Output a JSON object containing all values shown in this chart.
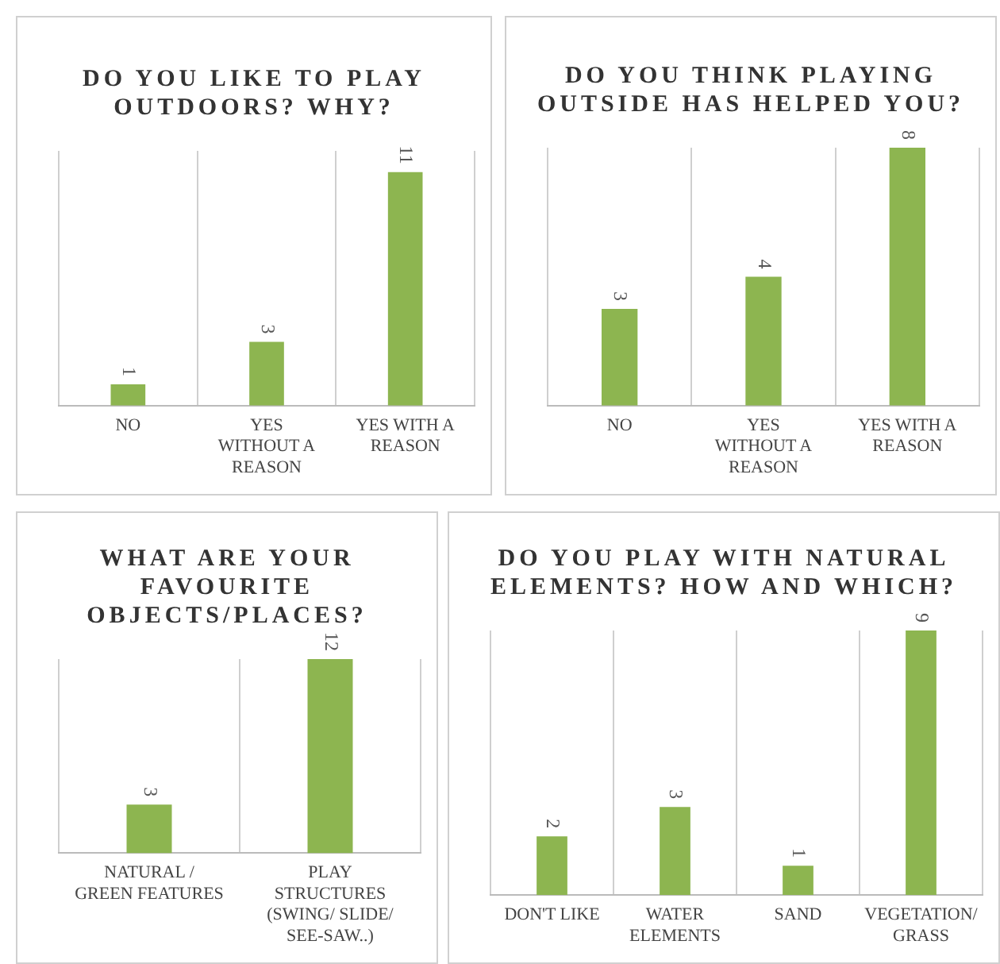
{
  "chart_data": [
    {
      "type": "bar",
      "title": "DO YOU LIKE TO PLAY OUTDOORS? WHY?",
      "categories": [
        "NO",
        "YES WITHOUT A REASON",
        "YES WITH A REASON"
      ],
      "values": [
        1,
        3,
        11
      ],
      "color": "#8db550",
      "data_labels": true,
      "grid": "x"
    },
    {
      "type": "bar",
      "title": "DO YOU THINK PLAYING OUTSIDE HAS HELPED YOU?",
      "categories": [
        "NO",
        "YES WITHOUT A REASON",
        "YES WITH A REASON"
      ],
      "values": [
        3,
        4,
        8
      ],
      "color": "#8db550",
      "data_labels": true,
      "grid": "x"
    },
    {
      "type": "bar",
      "title": "WHAT ARE YOUR FAVOURITE OBJECTS/PLACES?",
      "categories": [
        "NATURAL / GREEN FEATURES",
        "PLAY STRUCTURES (SWING/ SLIDE/ SEE-SAW..)"
      ],
      "values": [
        3,
        12
      ],
      "color": "#8db550",
      "data_labels": true,
      "grid": "x"
    },
    {
      "type": "bar",
      "title": "DO YOU PLAY WITH NATURAL ELEMENTS? HOW AND WHICH?",
      "categories": [
        "DON'T LIKE",
        "WATER ELEMENTS",
        "SAND",
        "VEGETATION/ GRASS"
      ],
      "values": [
        2,
        3,
        1,
        9
      ],
      "color": "#8db550",
      "data_labels": true,
      "grid": "x"
    }
  ]
}
